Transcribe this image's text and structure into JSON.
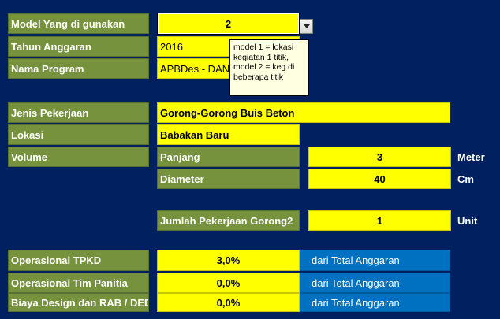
{
  "form": {
    "model_label": "Model Yang di gunakan",
    "model_value": "2",
    "tahun_label": "Tahun Anggaran",
    "tahun_value": "2016",
    "program_label": "Nama Program",
    "program_value": "APBDes - DANA",
    "jenis_label": "Jenis Pekerjaan",
    "jenis_value": "Gorong-Gorong Buis Beton",
    "lokasi_label": "Lokasi",
    "lokasi_value": "Babakan Baru",
    "volume_label": "Volume",
    "panjang_label": "Panjang",
    "panjang_value": "3",
    "panjang_unit": "Meter",
    "diameter_label": "Diameter",
    "diameter_value": "40",
    "diameter_unit": "Cm",
    "jumlah_label": "Jumlah Pekerjaan Gorong2",
    "jumlah_value": "1",
    "jumlah_unit": "Unit",
    "op_tpkd_label": "Operasional TPKD",
    "op_tpkd_value": "3,0%",
    "op_tpkd_note": "dari Total Anggaran",
    "op_panitia_label": "Operasional Tim Panitia",
    "op_panitia_value": "0,0%",
    "op_panitia_note": "dari Total Anggaran",
    "biaya_label": "Biaya Design dan RAB / DED",
    "biaya_value": "0,0%",
    "biaya_note": "dari Total Anggaran"
  },
  "tooltip": {
    "line1": "model 1 = lokasi",
    "line2": "kegiatan 1 titik,",
    "line3": "model 2 = keg di",
    "line4": "beberapa titik"
  },
  "icons": {
    "dropdown": "chevron-down-icon"
  },
  "colors": {
    "background": "#002060",
    "label": "#76923c",
    "input": "#ffff00",
    "note": "#0070c0",
    "tooltip": "#ffffe1"
  }
}
